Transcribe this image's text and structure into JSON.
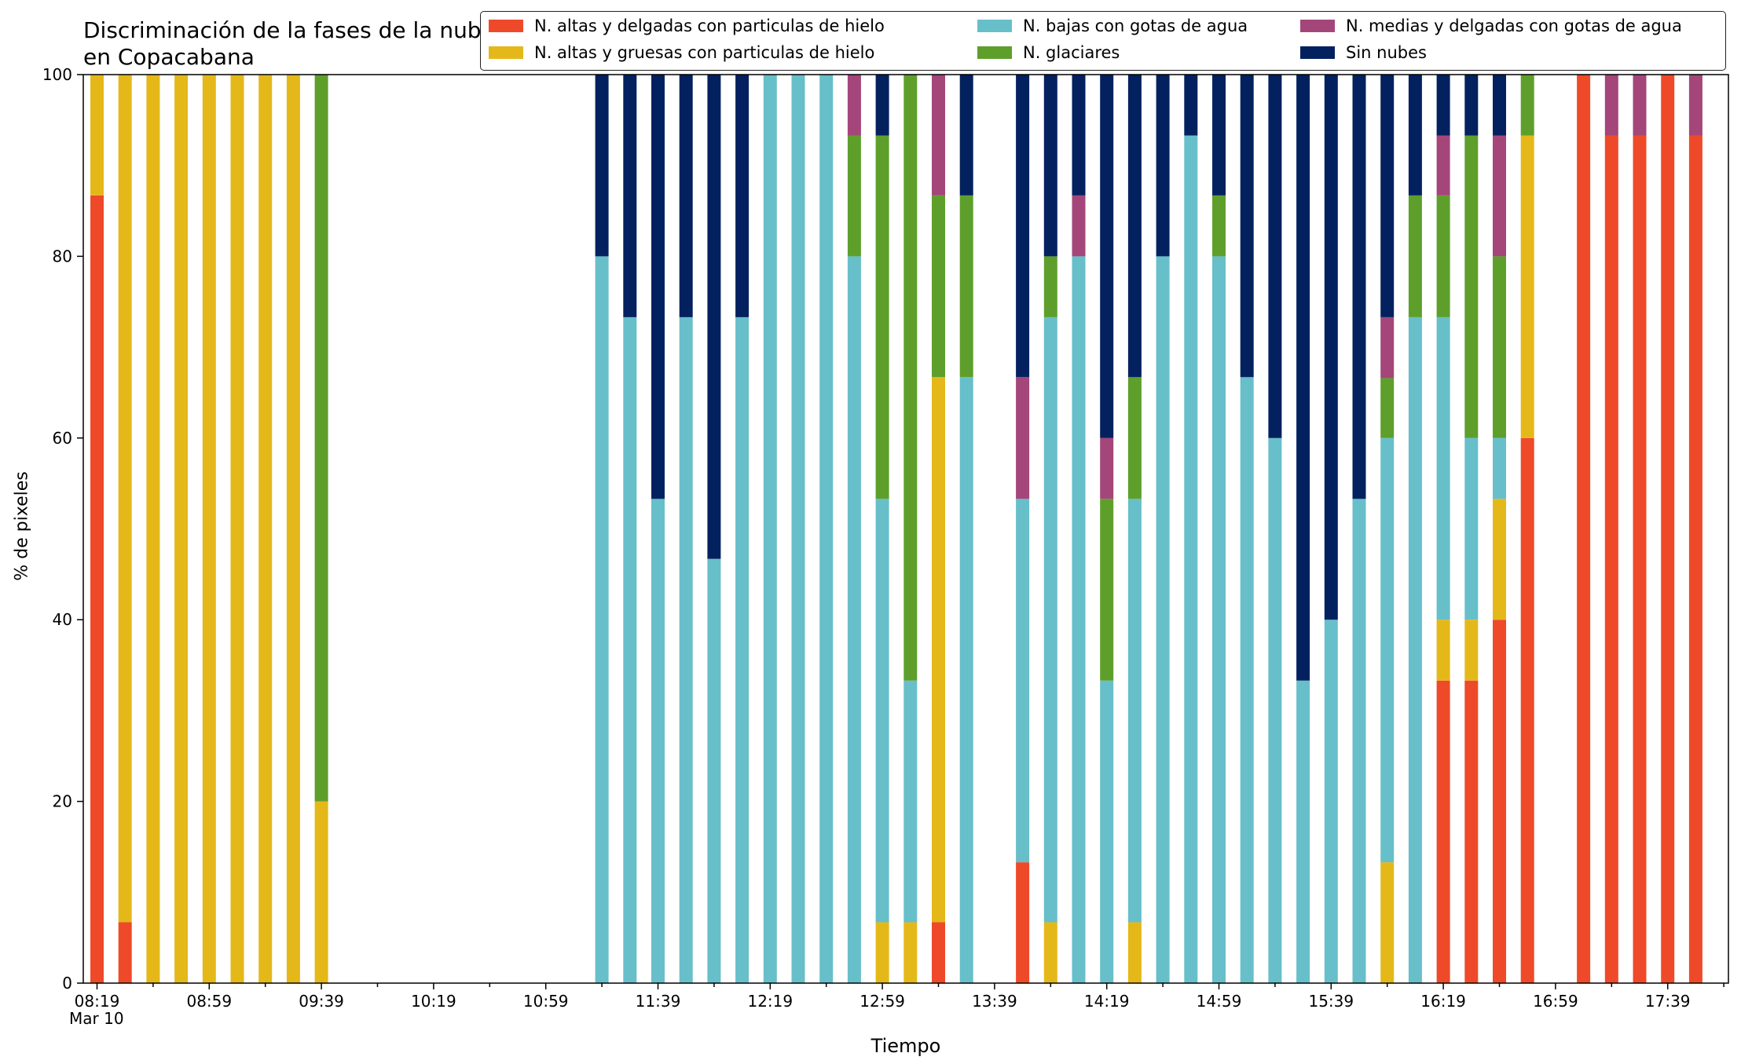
{
  "chart_data": {
    "type": "bar",
    "stacked": true,
    "title": "Discriminación de la fases de la nube en Copacabana",
    "xlabel": "Tiempo",
    "ylabel": "% de pixeles",
    "ylim": [
      0,
      100
    ],
    "yticks": [
      0,
      20,
      40,
      60,
      80,
      100
    ],
    "grid": false,
    "legend_position": "top-right",
    "xtick_labels": [
      "08:19",
      "08:59",
      "09:39",
      "10:19",
      "10:59",
      "11:39",
      "12:19",
      "12:59",
      "13:39",
      "14:19",
      "14:59",
      "15:39",
      "16:19",
      "16:59",
      "17:39"
    ],
    "date_label": "Mar 10",
    "categories": [
      "08:19",
      "08:29",
      "08:39",
      "08:49",
      "08:59",
      "09:09",
      "09:19",
      "09:29",
      "09:39",
      "09:49",
      "09:59",
      "10:09",
      "10:19",
      "10:29",
      "10:39",
      "10:49",
      "10:59",
      "11:09",
      "11:19",
      "11:29",
      "11:39",
      "11:49",
      "11:59",
      "12:09",
      "12:19",
      "12:29",
      "12:39",
      "12:49",
      "12:59",
      "13:09",
      "13:19",
      "13:29",
      "13:39",
      "13:49",
      "13:59",
      "14:09",
      "14:19",
      "14:29",
      "14:39",
      "14:49",
      "14:59",
      "15:09",
      "15:19",
      "15:29",
      "15:39",
      "15:49",
      "15:59",
      "16:09",
      "16:19",
      "16:29",
      "16:39",
      "16:49",
      "16:59",
      "17:09",
      "17:19",
      "17:29",
      "17:39",
      "17:49"
    ],
    "series": [
      {
        "name": "N. altas y delgadas con particulas de hielo",
        "color": "#ee4a2a",
        "values": [
          86.7,
          6.7,
          0,
          0,
          0,
          0,
          0,
          0,
          0,
          0,
          0,
          0,
          0,
          0,
          0,
          0,
          0,
          0,
          0,
          0,
          0,
          0,
          0,
          0,
          0,
          0,
          0,
          0,
          0,
          0,
          6.7,
          0,
          0,
          13.3,
          0,
          0,
          0,
          0,
          0,
          0,
          0,
          0,
          0,
          0,
          0,
          0,
          0,
          0,
          33.3,
          33.3,
          40,
          60,
          0,
          100,
          93.3,
          93.3,
          100,
          93.3
        ]
      },
      {
        "name": "N. altas y gruesas con particulas de hielo",
        "color": "#e5b81a",
        "values": [
          13.3,
          93.3,
          100,
          100,
          100,
          100,
          100,
          100,
          20,
          0,
          0,
          0,
          0,
          0,
          0,
          0,
          0,
          0,
          0,
          0,
          0,
          0,
          0,
          0,
          0,
          0,
          0,
          0,
          6.7,
          6.7,
          60,
          0,
          0,
          0,
          6.7,
          0,
          0,
          6.7,
          0,
          0,
          0,
          0,
          0,
          0,
          0,
          0,
          13.3,
          0,
          6.7,
          6.7,
          13.3,
          33.3,
          0,
          0,
          0,
          0,
          0,
          0
        ]
      },
      {
        "name": "N. bajas con gotas de agua",
        "color": "#67bfca",
        "values": [
          0,
          0,
          0,
          0,
          0,
          0,
          0,
          0,
          0,
          0,
          0,
          0,
          0,
          0,
          0,
          0,
          0,
          0,
          80,
          73.3,
          53.3,
          73.3,
          46.7,
          73.3,
          100,
          100,
          100,
          80,
          46.6,
          26.6,
          0,
          66.7,
          0,
          40,
          66.6,
          80,
          33.3,
          46.6,
          80,
          93.3,
          80,
          66.7,
          60,
          33.3,
          40,
          53.3,
          46.7,
          73.3,
          33.3,
          20,
          6.7,
          0,
          0,
          0,
          0,
          0,
          0,
          0
        ]
      },
      {
        "name": "N. glaciares",
        "color": "#5e9f2c",
        "values": [
          0,
          0,
          0,
          0,
          0,
          0,
          0,
          0,
          80,
          0,
          0,
          0,
          0,
          0,
          0,
          0,
          0,
          0,
          0,
          0,
          0,
          0,
          0,
          0,
          0,
          0,
          0,
          13.3,
          40,
          66.7,
          20,
          20,
          0,
          0,
          6.7,
          0,
          20,
          13.4,
          0,
          0,
          6.7,
          0,
          0,
          0,
          0,
          0,
          6.6,
          13.4,
          13.4,
          33.3,
          20,
          6.7,
          0,
          0,
          0,
          0,
          0,
          0
        ]
      },
      {
        "name": "N. medias y delgadas con gotas de agua",
        "color": "#a4467a",
        "values": [
          0,
          0,
          0,
          0,
          0,
          0,
          0,
          0,
          0,
          0,
          0,
          0,
          0,
          0,
          0,
          0,
          0,
          0,
          0,
          0,
          0,
          0,
          0,
          0,
          0,
          0,
          0,
          6.7,
          0,
          0,
          13.3,
          0,
          0,
          13.4,
          0,
          6.7,
          6.7,
          0,
          0,
          0,
          0,
          0,
          0,
          0,
          0,
          0,
          6.7,
          0,
          6.6,
          0,
          13.3,
          0,
          0,
          0,
          6.7,
          6.7,
          0,
          6.7
        ]
      },
      {
        "name": "Sin nubes",
        "color": "#04215f",
        "values": [
          0,
          0,
          0,
          0,
          0,
          0,
          0,
          0,
          0,
          0,
          0,
          0,
          0,
          0,
          0,
          0,
          0,
          0,
          20,
          26.7,
          46.7,
          26.7,
          53.3,
          26.7,
          0,
          0,
          0,
          0,
          6.7,
          0,
          0,
          13.3,
          0,
          33.3,
          20,
          13.3,
          40,
          33.3,
          20,
          6.7,
          13.3,
          33.3,
          40,
          66.7,
          60,
          46.7,
          26.7,
          13.3,
          6.7,
          6.7,
          6.7,
          0,
          0,
          0,
          0,
          0,
          0,
          0
        ]
      }
    ]
  }
}
